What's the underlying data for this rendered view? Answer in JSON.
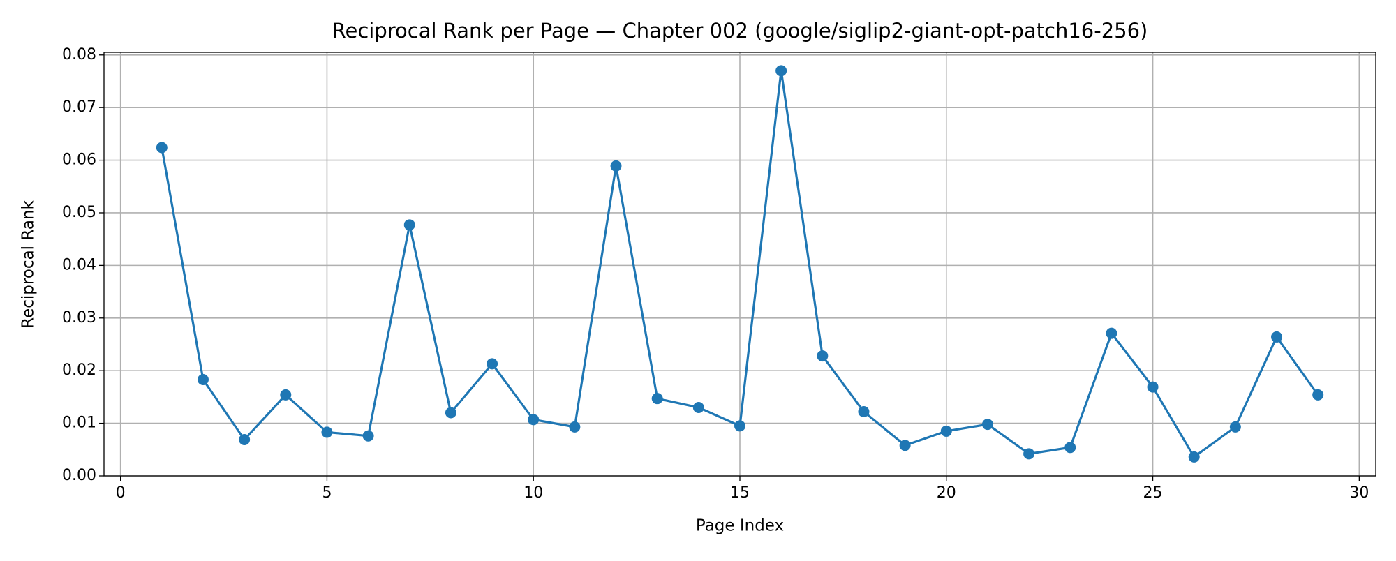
{
  "chart_data": {
    "type": "line",
    "title": "Reciprocal Rank per Page — Chapter 002 (google/siglip2-giant-opt-patch16-256)",
    "x_label": "Page Index",
    "y_label": "Reciprocal Rank",
    "x": [
      1,
      2,
      3,
      4,
      5,
      6,
      7,
      8,
      9,
      10,
      11,
      12,
      13,
      14,
      15,
      16,
      17,
      18,
      19,
      20,
      21,
      22,
      23,
      24,
      25,
      26,
      27,
      28,
      29
    ],
    "series": [
      {
        "color": "#1f77b4",
        "values": [
          0.0624,
          0.0183,
          0.0069,
          0.0154,
          0.0083,
          0.0076,
          0.0477,
          0.012,
          0.0213,
          0.0107,
          0.0093,
          0.0589,
          0.0147,
          0.013,
          0.0095,
          0.077,
          0.0228,
          0.0122,
          0.0058,
          0.0085,
          0.0098,
          0.0042,
          0.0054,
          0.0271,
          0.0169,
          0.0036,
          0.0093,
          0.0264,
          0.0154
        ]
      }
    ],
    "xlim": [
      -0.4,
      30.4
    ],
    "ylim": [
      0,
      0.0805
    ],
    "xticks": [
      0,
      5,
      10,
      15,
      20,
      25,
      30
    ],
    "yticks": [
      {
        "value": 0,
        "label": "0.00"
      },
      {
        "value": 0.01,
        "label": "0.01"
      },
      {
        "value": 0.02,
        "label": "0.02"
      },
      {
        "value": 0.03,
        "label": "0.03"
      },
      {
        "value": 0.04,
        "label": "0.04"
      },
      {
        "value": 0.05,
        "label": "0.05"
      },
      {
        "value": 0.06,
        "label": "0.06"
      },
      {
        "value": 0.07,
        "label": "0.07"
      },
      {
        "value": 0.08,
        "label": "0.08"
      }
    ],
    "grid": true,
    "markers": true
  }
}
